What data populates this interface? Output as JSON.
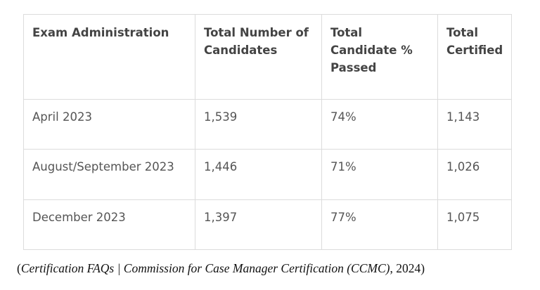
{
  "table": {
    "headers": [
      [
        "Exam Administration"
      ],
      [
        "Total Number of",
        "Candidates"
      ],
      [
        "Total",
        "Candidate %",
        "Passed"
      ],
      [
        "Total",
        "Certified"
      ]
    ],
    "rows": [
      [
        "April 2023",
        "1,539",
        "74%",
        "1,143"
      ],
      [
        "August/September 2023",
        "1,446",
        "71%",
        "1,026"
      ],
      [
        "December 2023",
        "1,397",
        "77%",
        "1,075"
      ]
    ]
  },
  "caption": {
    "parts": [
      {
        "text": "(",
        "italic": false
      },
      {
        "text": "Certification FAQs | Commission for Case Manager Certification (CCMC)",
        "italic": true
      },
      {
        "text": ", 2024)",
        "italic": false
      }
    ]
  }
}
